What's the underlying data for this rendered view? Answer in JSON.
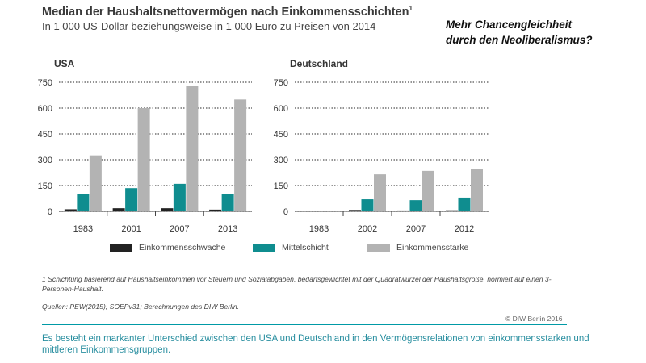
{
  "header": {
    "title": "Median der Haushaltsnettovermögen nach Einkommensschichten",
    "title_note": "1",
    "subtitle": "In 1 000 US-Dollar beziehungsweise in 1 000 Euro zu Preisen von 2014"
  },
  "headline": {
    "line1": "Mehr Chancengleichheit",
    "line2": "durch den Neoliberalismus?"
  },
  "chart_data": [
    {
      "type": "bar",
      "title": "USA",
      "categories": [
        "1983",
        "2001",
        "2007",
        "2013"
      ],
      "yticks": [
        0,
        150,
        300,
        450,
        600,
        750
      ],
      "ylim": [
        0,
        750
      ],
      "grid": true,
      "series": [
        {
          "name": "Einkommensschwache",
          "values": [
            12,
            18,
            18,
            10
          ]
        },
        {
          "name": "Mittelschicht",
          "values": [
            100,
            135,
            160,
            100
          ]
        },
        {
          "name": "Einkommensstarke",
          "values": [
            325,
            600,
            730,
            650
          ]
        }
      ]
    },
    {
      "type": "bar",
      "title": "Deutschland",
      "categories": [
        "1983",
        "2002",
        "2007",
        "2012"
      ],
      "yticks": [
        0,
        150,
        300,
        450,
        600,
        750
      ],
      "ylim": [
        0,
        750
      ],
      "grid": true,
      "series": [
        {
          "name": "Einkommensschwache",
          "values": [
            null,
            8,
            5,
            6
          ]
        },
        {
          "name": "Mittelschicht",
          "values": [
            null,
            70,
            65,
            80
          ]
        },
        {
          "name": "Einkommensstarke",
          "values": [
            null,
            215,
            235,
            245
          ]
        }
      ]
    }
  ],
  "legend": [
    {
      "label": "Einkommensschwache",
      "color": "#222222"
    },
    {
      "label": "Mittelschicht",
      "color": "#0f8d8f"
    },
    {
      "label": "Einkommensstarke",
      "color": "#b3b3b3"
    }
  ],
  "footnote": "1  Schichtung basierend auf Haushaltseinkommen vor Steuern und Sozialabgaben, bedarfsgewichtet mit der Quadratwurzel der Haushaltsgröße, normiert auf einen 3-Personen-Haushalt.",
  "sources": "Quellen: PEW(2015); SOEPv31; Berechnungen des DIW Berlin.",
  "copyright": "© DIW Berlin 2016",
  "caption": "Es besteht ein markanter Unterschied zwischen den USA und Deutschland in den Vermögensrelationen von einkommensstarken und mittleren Einkommensgruppen."
}
